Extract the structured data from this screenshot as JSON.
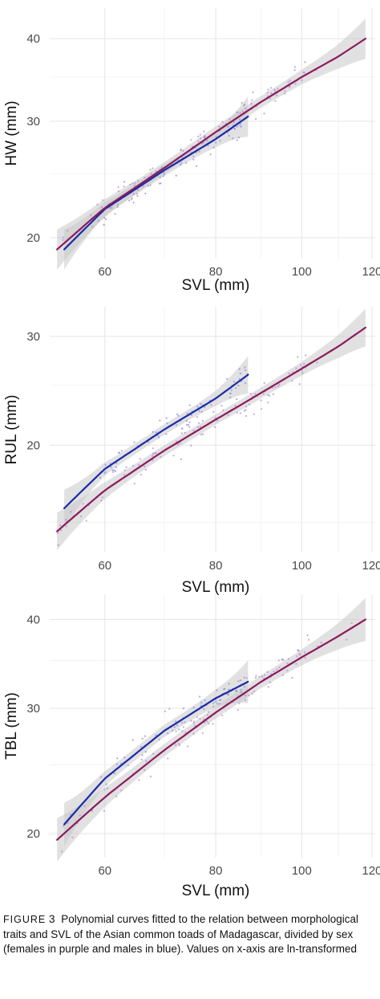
{
  "colors": {
    "female": "#8b1a5e",
    "male": "#1c2aa8",
    "band": "#c8c8c8",
    "grid": "#e4e4e4"
  },
  "caption": {
    "figure_label": "FIGURE",
    "figure_number": "3",
    "text": "Polynomial curves fitted to the relation between morphological traits and SVL of the Asian common toads of Madagascar, divided by sex (females in purple and males in blue). Values on x-axis are ln-transformed"
  },
  "chart_data": [
    {
      "type": "scatter",
      "xlabel": "SVL (mm)",
      "ylabel": "HW (mm)",
      "x_scale": "log",
      "y_scale": "log",
      "xlim": [
        52,
        121
      ],
      "ylim": [
        18.6,
        44.5
      ],
      "xticks": [
        60,
        80,
        100,
        120
      ],
      "yticks": [
        20,
        30,
        40
      ],
      "grid": true,
      "series": [
        {
          "sex": "female",
          "x": [
            53,
            60,
            70,
            80,
            90,
            100,
            110,
            118
          ],
          "y": [
            19.2,
            22.2,
            25.5,
            28.9,
            32.1,
            35.0,
            37.6,
            40.0
          ]
        },
        {
          "sex": "male",
          "x": [
            54,
            60,
            70,
            80,
            87
          ],
          "y": [
            19.2,
            22.1,
            25.3,
            28.2,
            30.5
          ]
        }
      ]
    },
    {
      "type": "scatter",
      "xlabel": "SVL (mm)",
      "ylabel": "RUL (mm)",
      "x_scale": "log",
      "y_scale": "log",
      "xlim": [
        52,
        121
      ],
      "ylim": [
        13.4,
        33.5
      ],
      "xticks": [
        60,
        80,
        100,
        120
      ],
      "yticks": [
        20,
        30
      ],
      "grid": true,
      "series": [
        {
          "sex": "female",
          "x": [
            53,
            60,
            70,
            80,
            90,
            100,
            110,
            118
          ],
          "y": [
            14.5,
            16.9,
            19.6,
            22.0,
            24.3,
            26.6,
            28.9,
            31.0
          ]
        },
        {
          "sex": "male",
          "x": [
            54,
            60,
            70,
            80,
            87
          ],
          "y": [
            15.8,
            18.3,
            21.2,
            23.8,
            26.0
          ]
        }
      ]
    },
    {
      "type": "scatter",
      "xlabel": "SVL (mm)",
      "ylabel": "TBL (mm)",
      "x_scale": "log",
      "y_scale": "log",
      "xlim": [
        52,
        121
      ],
      "ylim": [
        18.5,
        43.4
      ],
      "xticks": [
        60,
        80,
        100,
        120
      ],
      "yticks": [
        20,
        30,
        40
      ],
      "grid": true,
      "series": [
        {
          "sex": "female",
          "x": [
            53,
            60,
            70,
            80,
            90,
            100,
            110,
            118
          ],
          "y": [
            19.6,
            22.5,
            26.2,
            29.6,
            32.7,
            35.4,
            37.9,
            40.0
          ]
        },
        {
          "sex": "male",
          "x": [
            54,
            60,
            70,
            80,
            87
          ],
          "y": [
            20.6,
            23.9,
            27.9,
            31.0,
            32.7
          ]
        }
      ]
    }
  ]
}
